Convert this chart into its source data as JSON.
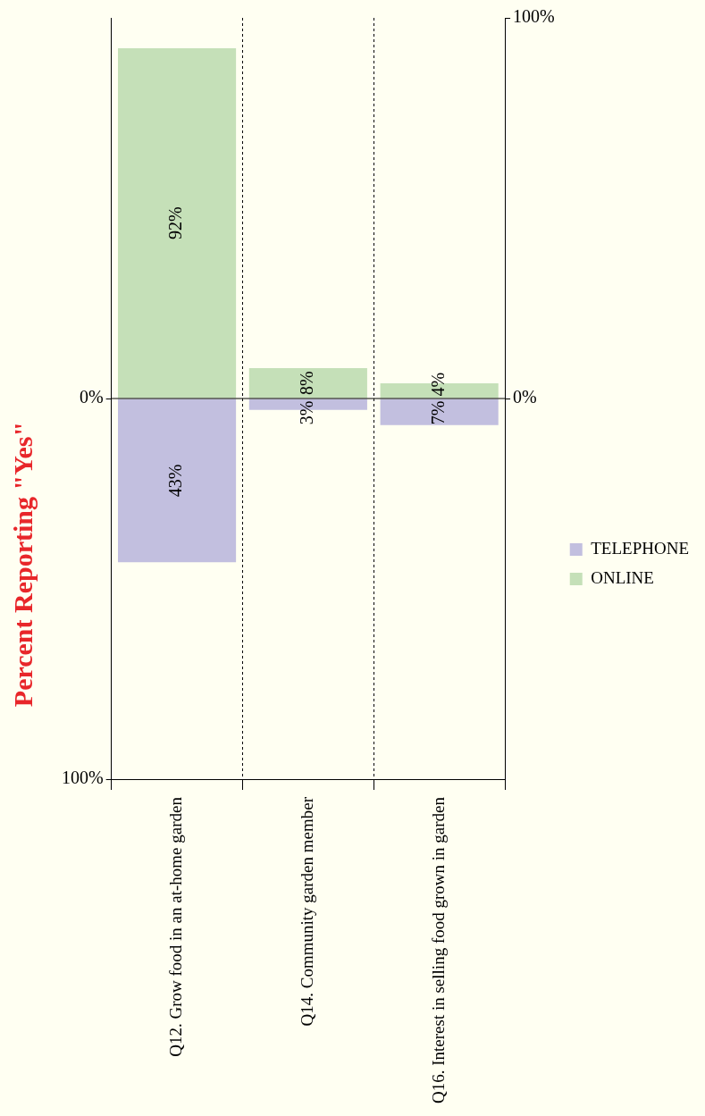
{
  "chart_data": {
    "type": "bar",
    "stacked": true,
    "title": "Percent Reporting \"Yes\"",
    "categories": [
      "Q12. Grow food in an at-home garden",
      "Q14. Community garden member",
      "Q16. Interest in selling food grown in garden"
    ],
    "series": [
      {
        "name": "TELEPHONE",
        "color": "#c2bfdf",
        "axis": "y2",
        "values": [
          43,
          3,
          7
        ],
        "value_labels": [
          "43%",
          "3%",
          "7%"
        ]
      },
      {
        "name": "ONLINE",
        "color": "#c5e0b8",
        "values": [
          92,
          8,
          4
        ],
        "value_labels": [
          "92%",
          "8%",
          "4%"
        ]
      }
    ],
    "ylim": [
      -100,
      100
    ],
    "yticks": [
      {
        "value": 0,
        "label": "0%"
      },
      {
        "value": 100,
        "label": "100%"
      }
    ],
    "y2lim": [
      100,
      -100
    ],
    "y2ticks": [
      {
        "value": 0,
        "label": "0%"
      },
      {
        "value": 100,
        "label": "100%"
      }
    ],
    "ref_lines": [
      {
        "axis": "y",
        "value": 0,
        "color": "#000000"
      }
    ],
    "grid": "x",
    "legend": "right"
  }
}
